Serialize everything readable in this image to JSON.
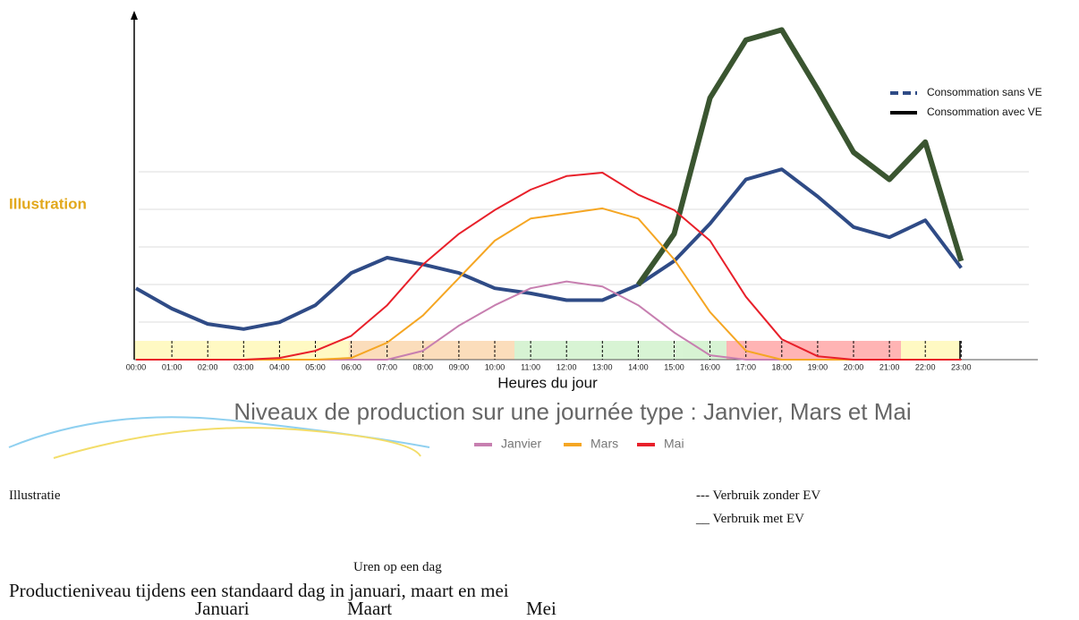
{
  "chart_data": {
    "type": "line",
    "side_label": "Illustration",
    "title": "Niveaux de production sur une journée type : Janvier, Mars et Mai",
    "xlabel": "Heures du jour",
    "categories": [
      "00:00",
      "01:00",
      "02:00",
      "03:00",
      "04:00",
      "05:00",
      "06:00",
      "07:00",
      "08:00",
      "09:00",
      "10:00",
      "11:00",
      "12:00",
      "13:00",
      "14:00",
      "15:00",
      "16:00",
      "17:00",
      "18:00",
      "19:00",
      "20:00",
      "21:00",
      "22:00",
      "23:00"
    ],
    "ylim": [
      0,
      100
    ],
    "series": [
      {
        "name": "Consommation sans VE",
        "color": "#2f4b86",
        "legend": "top",
        "values": [
          21,
          15,
          10.5,
          9,
          11,
          16,
          25.5,
          30,
          28,
          25.5,
          21,
          19.5,
          17.5,
          17.5,
          22,
          29,
          40,
          53,
          56,
          48,
          39,
          36,
          41,
          27
        ]
      },
      {
        "name": "Consommation avec VE",
        "color": "#3a5530",
        "legend": "top",
        "values": [
          null,
          null,
          null,
          null,
          null,
          null,
          null,
          null,
          null,
          null,
          null,
          null,
          null,
          null,
          22,
          37,
          77,
          94,
          97,
          79.5,
          61,
          53,
          64,
          29
        ]
      },
      {
        "name": "Janvier",
        "color": "#c77fb0",
        "legend": "bottom",
        "values": [
          0,
          0,
          0,
          0,
          0,
          0,
          0,
          0,
          2.6,
          10,
          16,
          21,
          23,
          21.5,
          16,
          8,
          1.3,
          0,
          0,
          0,
          0,
          0,
          0,
          0
        ]
      },
      {
        "name": "Mars",
        "color": "#f5a623",
        "legend": "bottom",
        "values": [
          0,
          0,
          0,
          0,
          0,
          0,
          0.5,
          5,
          13,
          24,
          35,
          41.5,
          43,
          44.5,
          41.5,
          29.5,
          14,
          2.6,
          0,
          0,
          0,
          0,
          0,
          0
        ]
      },
      {
        "name": "Mai",
        "color": "#e8202a",
        "legend": "bottom",
        "values": [
          0,
          0,
          0,
          0,
          0.5,
          2.6,
          7,
          16,
          28,
          37,
          44,
          50,
          54,
          55,
          48.5,
          44,
          35,
          18.5,
          6,
          1,
          0,
          0,
          0,
          0
        ]
      }
    ]
  },
  "translation": {
    "side_label": "Illustratie",
    "legend": [
      "--- Verbruik zonder EV",
      "__  Verbruik met EV"
    ],
    "xlabel": "Uren op een dag",
    "title": "Productieniveau tijdens een standaard dag in januari, maart en mei",
    "series": [
      "Januari",
      "Maart",
      "Mei"
    ]
  }
}
